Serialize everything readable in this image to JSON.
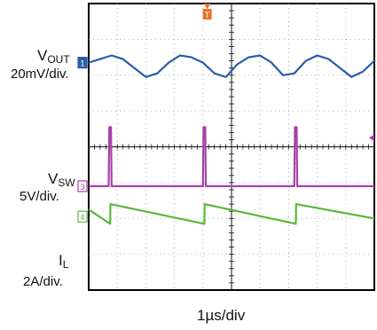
{
  "chart_data": {
    "type": "line",
    "title": "",
    "grid": true,
    "grid_divisions": {
      "x": 10,
      "y": 8
    },
    "time_scale": "1µs/div",
    "channels": [
      {
        "id": "1",
        "name_main": "V",
        "name_sub": "OUT",
        "scale": "20mV/div.",
        "color": "#2a5caa",
        "shape": "scalloped ripple, 3 cycles"
      },
      {
        "id": "3",
        "name_main": "V",
        "name_sub": "SW",
        "scale": "5V/div.",
        "color": "#a642a6",
        "shape": "narrow high pulses"
      },
      {
        "id": "4",
        "name_main": "I",
        "name_sub": "L",
        "scale": "2A/div.",
        "color": "#5cb83a",
        "shape": "sawtooth"
      }
    ],
    "x_units": "div",
    "xlim": [
      0,
      10
    ],
    "switching_events_div": [
      0.75,
      4.05,
      7.25
    ],
    "series": [
      {
        "name": "V_OUT",
        "x": [
          0,
          0.4,
          0.8,
          1.2,
          1.6,
          2.0,
          2.4,
          2.8,
          3.2,
          3.6,
          4.0,
          4.4,
          4.8,
          5.2,
          5.6,
          6.0,
          6.4,
          6.8,
          7.2,
          7.6,
          8.0,
          8.4,
          8.8,
          9.2,
          9.6,
          10
        ],
        "y_div": [
          2.35,
          2.45,
          2.55,
          2.45,
          2.2,
          1.95,
          2.05,
          2.35,
          2.55,
          2.5,
          2.35,
          2.05,
          1.95,
          2.3,
          2.5,
          2.55,
          2.35,
          2.0,
          2.05,
          2.4,
          2.55,
          2.45,
          2.2,
          1.95,
          2.1,
          2.4
        ]
      },
      {
        "name": "V_SW",
        "x": [
          0,
          0.7,
          0.72,
          0.78,
          0.8,
          4.0,
          4.02,
          4.08,
          4.1,
          7.2,
          7.22,
          7.28,
          7.3,
          10
        ],
        "y_div": [
          -1.1,
          -1.1,
          0.55,
          0.55,
          -1.1,
          -1.1,
          0.55,
          0.55,
          -1.1,
          -1.1,
          0.55,
          0.55,
          -1.1,
          -1.1
        ]
      },
      {
        "name": "I_L",
        "x": [
          0,
          0.75,
          0.76,
          4.05,
          4.06,
          7.25,
          7.26,
          10
        ],
        "y_div": [
          -1.75,
          -2.15,
          -1.6,
          -2.15,
          -1.6,
          -2.15,
          -1.6,
          -2.0
        ]
      }
    ],
    "markers": {
      "trigger": "T",
      "trigger_color": "#e8742a"
    }
  }
}
